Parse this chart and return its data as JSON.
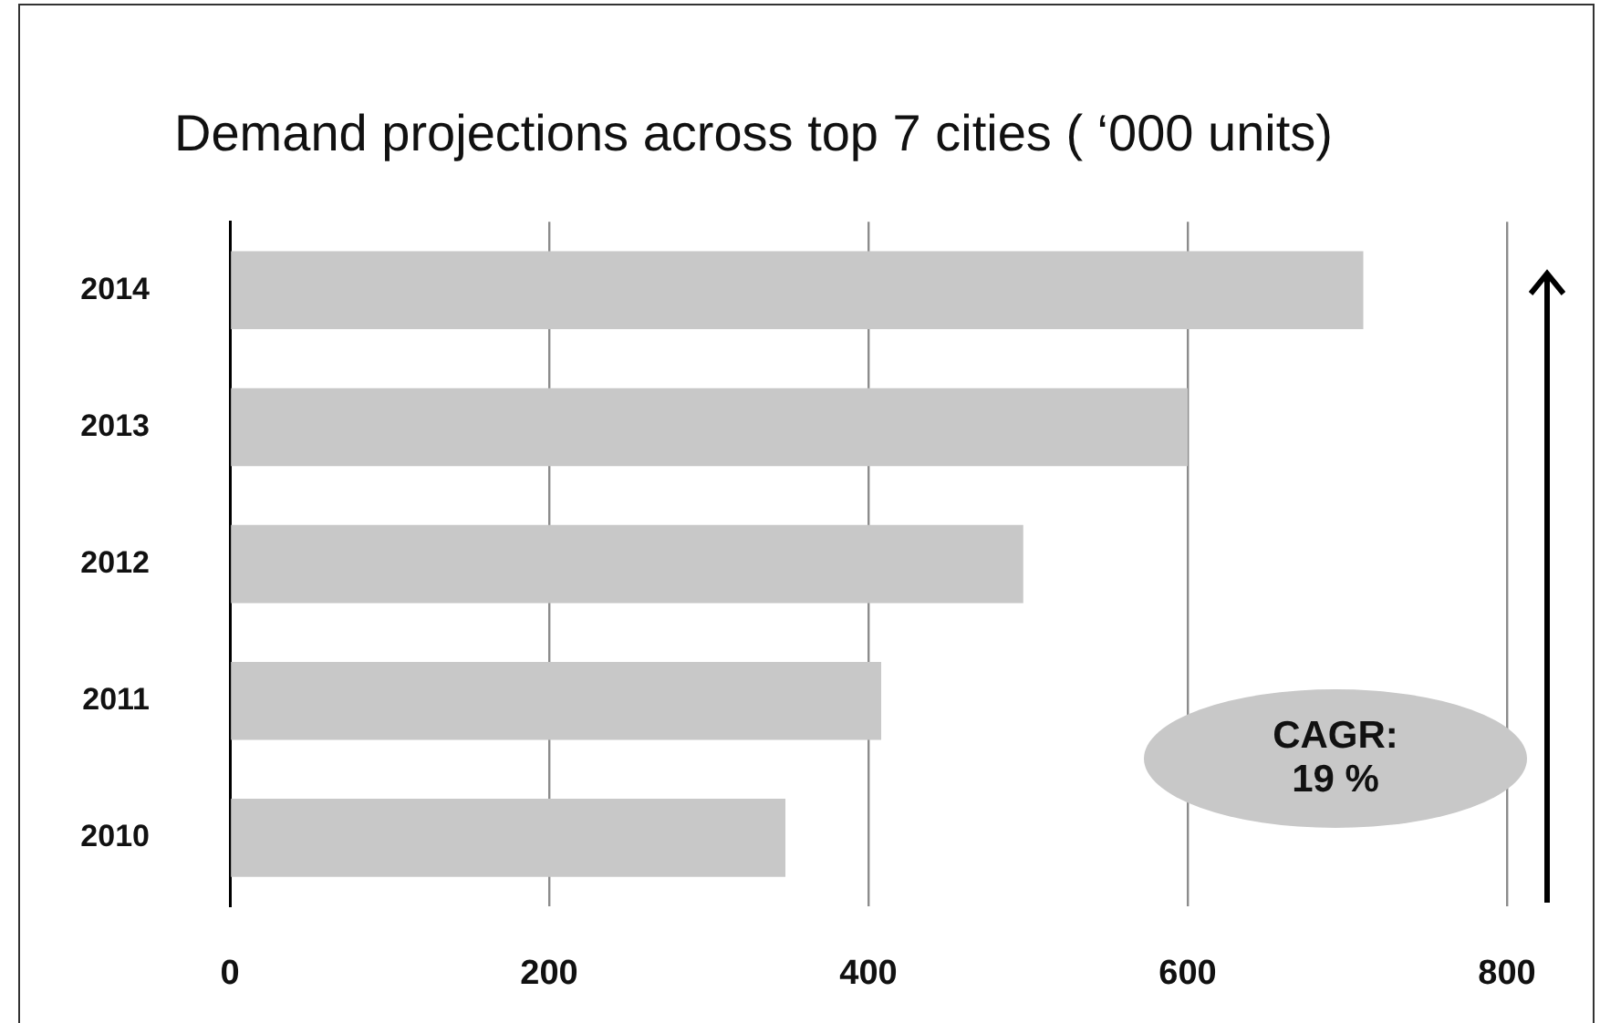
{
  "chart_data": {
    "type": "bar",
    "orientation": "horizontal",
    "title": "Demand projections across top 7 cities ( ‘000 units)",
    "categories": [
      "2014",
      "2013",
      "2012",
      "2011",
      "2010"
    ],
    "values": [
      710,
      600,
      497,
      408,
      348
    ],
    "color": "#c8c8c8",
    "xlim": [
      0,
      800
    ],
    "xticks": [
      0,
      200,
      400,
      600,
      800
    ],
    "grid": "x",
    "legend": false,
    "annotations": [
      "CAGR: 19 %"
    ]
  }
}
